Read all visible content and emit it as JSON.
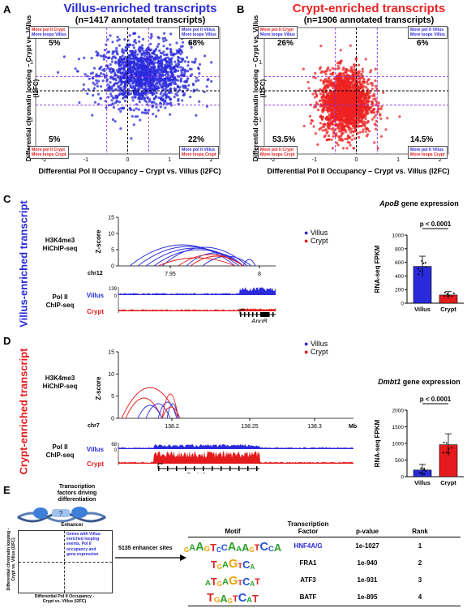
{
  "panel_labels": {
    "A": "A",
    "B": "B",
    "C": "C",
    "D": "D",
    "E": "E"
  },
  "panelA": {
    "title": "Villus-enriched transcripts",
    "subtitle": "(n=1417 annotated transcripts)",
    "ylabel": "Differential chromatin looping – Crypt vs. Villus (l2FC)",
    "xlabel": "Differential Pol II Occupancy – Crypt vs. Villus (l2FC)",
    "pct_tl": "5%",
    "pct_tr": "68%",
    "pct_bl": "5%",
    "pct_br": "22%",
    "box_tl": [
      "More pol II Crypt",
      "More loops Villus"
    ],
    "box_tr": [
      "More pol II Villus",
      "More loops Villus"
    ],
    "box_bl": [
      "More pol II Crypt",
      "More loops Crypt"
    ],
    "box_br": [
      "More pol II Villus",
      "More loops Crypt"
    ],
    "yticks": [
      "2",
      "1",
      "0",
      "-1",
      "-2"
    ],
    "xticks": [
      "-2",
      "-1",
      "0",
      "1",
      "2"
    ],
    "color": "#2a2adc"
  },
  "panelB": {
    "title": "Crypt-enriched transcripts",
    "subtitle": "(n=1906 annotated transcripts)",
    "ylabel": "Differential chromatin looping – Crypt vs. Villus (l2FC)",
    "xlabel": "Differential Pol II Occupancy – Crypt vs. Villus (l2FC)",
    "pct_tl": "26%",
    "pct_tr": "6%",
    "pct_bl": "53.5%",
    "pct_br": "14.5%",
    "box_tl": [
      "More pol II Crypt",
      "More loops Villus"
    ],
    "box_tr": [
      "More pol II Villus",
      "More loops Villus"
    ],
    "box_bl": [
      "More pol II Crypt",
      "More loops Crypt"
    ],
    "box_br": [
      "More pol II Villus",
      "More loops Crypt"
    ],
    "yticks": [
      "2",
      "1",
      "0",
      "-1",
      "-2"
    ],
    "xticks": [
      "-2",
      "-1",
      "0",
      "1",
      "2"
    ],
    "color": "#ee2222"
  },
  "panelC": {
    "side_label": "Villus-enriched transcript",
    "hichip_label": [
      "H3K4me3",
      "HiChIP-seq"
    ],
    "chip_label": [
      "Pol II",
      "ChIP-seq"
    ],
    "zscore": "Z-score",
    "yticks": [
      "15",
      "10",
      "5",
      "0"
    ],
    "chr": "chr12",
    "xticks": [
      "7.95",
      "8"
    ],
    "legend": [
      "Villus",
      "Crypt"
    ],
    "track_max": "139",
    "track_zero": "0",
    "track_names": [
      "Villus",
      "Crypt"
    ],
    "gene": "ApoB",
    "bar_title_gene": "ApoB",
    "bar_title_rest": " gene expression",
    "pval": "p < 0.0001",
    "bar_ylabel": "RNA-seq FPKM",
    "bar_yticks": [
      "1000",
      "800",
      "600",
      "400",
      "200",
      "0"
    ],
    "bar_cats": [
      "Villus",
      "Crypt"
    ]
  },
  "panelD": {
    "side_label": "Crypt-enriched transcript",
    "hichip_label": [
      "H3K4me3",
      "HiChIP-seq"
    ],
    "chip_label": [
      "Pol II",
      "ChIP-seq"
    ],
    "zscore": "Z-score",
    "yticks": [
      "15",
      "10",
      "5",
      "0"
    ],
    "chr": "chr7",
    "xticks": [
      "138.2",
      "138.25",
      "138.3"
    ],
    "unit": "Mb",
    "legend": [
      "Villus",
      "Crypt"
    ],
    "track_max": "68",
    "track_zero": "0",
    "track_names": [
      "Villus",
      "Crypt"
    ],
    "gene": "Dmbt1",
    "bar_title_gene": "Dmbt1",
    "bar_title_rest": " gene expression",
    "pval": "p < 0.0001",
    "bar_ylabel": "RNA-seq FPKM",
    "bar_yticks": [
      "2000",
      "1500",
      "1000",
      "500",
      "0"
    ],
    "bar_cats": [
      "Villus",
      "Crypt"
    ]
  },
  "panelE": {
    "header": [
      "Transcription",
      "factors driving",
      "differentiation"
    ],
    "enhancer": "Enhancer",
    "qmark": "?",
    "quad_text": [
      "Genes with Villus-",
      "enriched looping",
      "events, Pol II",
      "occupancy and",
      "gene expression"
    ],
    "ylabel": [
      "Differential chromatin looping -",
      "Crypt vs. Villus (l2FC)"
    ],
    "xlabel": [
      "Differential Pol II Occupancy -",
      "Crypt vs. Villus (l2FC)"
    ],
    "sites": "5135 enhancer sites",
    "columns": [
      "Motif",
      "Transcription Factor",
      "p-value",
      "Rank"
    ],
    "rows": [
      {
        "motif": "GAAGTCCAAAGTCCA",
        "tf": "HNF4A/G",
        "p": "1e-1027",
        "rank": "1"
      },
      {
        "motif": "TGAGTCA",
        "tf": "FRA1",
        "p": "1e-940",
        "rank": "2"
      },
      {
        "motif": "ATGAGTCAT",
        "tf": "ATF3",
        "p": "1e-931",
        "rank": "3"
      },
      {
        "motif": "TGAGTCAT",
        "tf": "BATF",
        "p": "1e-895",
        "rank": "4"
      }
    ]
  },
  "chart_data": [
    {
      "type": "scatter",
      "title": "Villus-enriched transcripts",
      "xlabel": "Differential Pol II Occupancy – Crypt vs. Villus (l2FC)",
      "ylabel": "Differential chromatin looping – Crypt vs. Villus (l2FC)",
      "xlim": [
        -2.2,
        2.2
      ],
      "ylim": [
        -2.2,
        2.2
      ],
      "series": [
        {
          "name": "",
          "color": "#2a2adc",
          "center": [
            0.4,
            0.55
          ],
          "n": 1417
        }
      ]
    },
    {
      "type": "scatter",
      "title": "Crypt-enriched transcripts",
      "xlabel": "Differential Pol II Occupancy – Crypt vs. Villus (l2FC)",
      "ylabel": "Differential chromatin looping – Crypt vs. Villus (l2FC)",
      "xlim": [
        -2.2,
        2.2
      ],
      "ylim": [
        -2.2,
        2.2
      ],
      "series": [
        {
          "name": "",
          "color": "#ee2222",
          "center": [
            -0.25,
            -0.4
          ],
          "n": 1906
        }
      ]
    },
    {
      "type": "bar",
      "title": "ApoB gene expression",
      "categories": [
        "Villus",
        "Crypt"
      ],
      "values": [
        540,
        120
      ],
      "errors": [
        150,
        50
      ],
      "ylim": [
        0,
        1000
      ],
      "colors": [
        "#2a2adc",
        "#e41a1c"
      ]
    },
    {
      "type": "bar",
      "title": "Dmbt1 gene expression",
      "categories": [
        "Villus",
        "Crypt"
      ],
      "values": [
        200,
        960
      ],
      "errors": [
        170,
        330
      ],
      "ylim": [
        0,
        2000
      ],
      "colors": [
        "#2a2adc",
        "#e41a1c"
      ]
    }
  ]
}
